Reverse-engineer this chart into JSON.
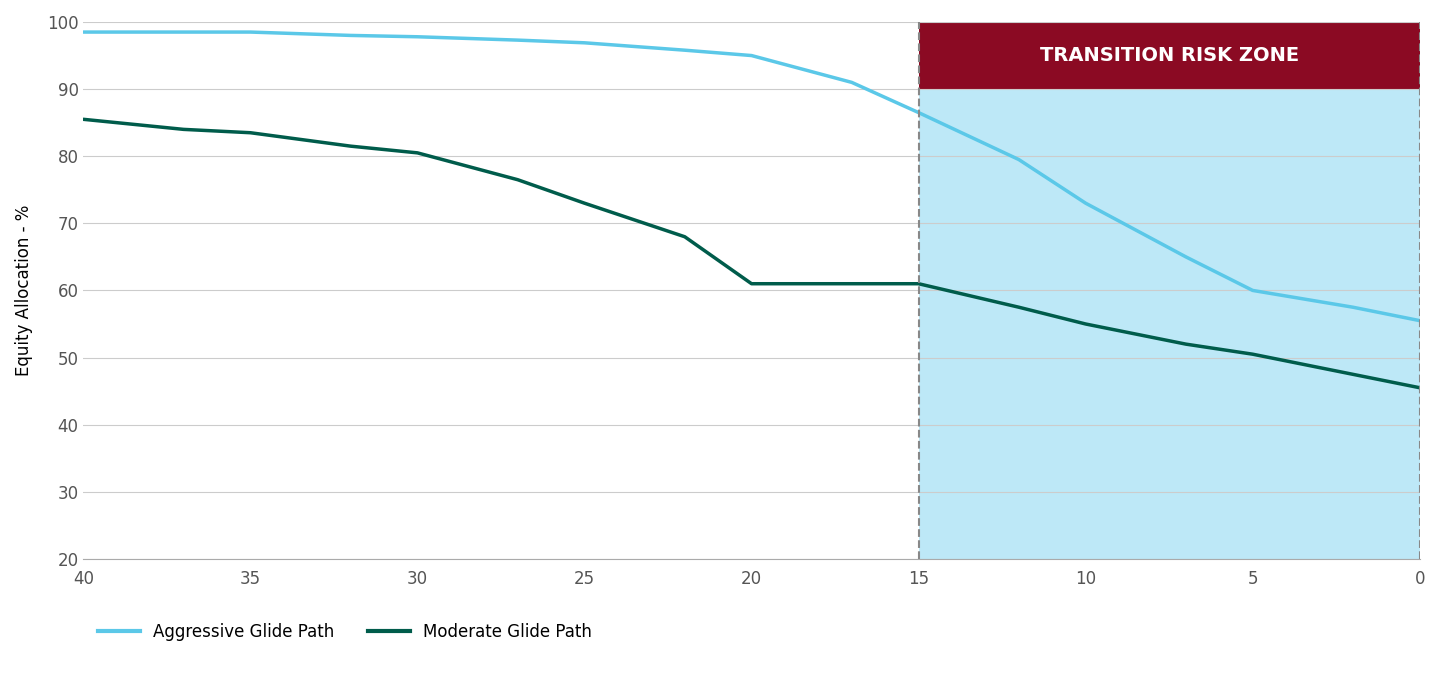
{
  "aggressive_x": [
    40,
    37,
    35,
    32,
    30,
    27,
    25,
    22,
    20,
    17,
    15,
    12,
    10,
    7,
    5,
    2,
    0
  ],
  "aggressive_y": [
    98.5,
    98.5,
    98.5,
    98.0,
    97.8,
    97.3,
    96.9,
    95.8,
    95.0,
    91.0,
    86.5,
    79.5,
    73.0,
    65.0,
    60.0,
    57.5,
    55.5
  ],
  "moderate_x": [
    40,
    37,
    35,
    32,
    30,
    27,
    25,
    22,
    20,
    17,
    15,
    12,
    10,
    7,
    5,
    2,
    0
  ],
  "moderate_y": [
    85.5,
    84.0,
    83.5,
    81.5,
    80.5,
    76.5,
    73.0,
    68.0,
    61.0,
    61.0,
    61.0,
    57.5,
    55.0,
    52.0,
    50.5,
    47.5,
    45.5
  ],
  "aggressive_color": "#5bc8e8",
  "moderate_color": "#005C4B",
  "transition_zone_x_start": 15,
  "transition_zone_x_end": 0,
  "transition_bg_color": "#bde8f7",
  "transition_header_color": "#8B0A23",
  "transition_header_text": "TRANSITION RISK ZONE",
  "transition_header_text_color": "#ffffff",
  "ylabel": "Equity Allocation - %",
  "xlim_left": 40,
  "xlim_right": 0,
  "ylim_bottom": 20,
  "ylim_top": 100,
  "yticks": [
    20,
    30,
    40,
    50,
    60,
    70,
    80,
    90,
    100
  ],
  "xticks": [
    40,
    35,
    30,
    25,
    20,
    15,
    10,
    5,
    0
  ],
  "legend_aggressive": "Aggressive Glide Path",
  "legend_moderate": "Moderate Glide Path",
  "background_color": "#ffffff",
  "grid_color": "#cccccc",
  "line_width": 2.5
}
